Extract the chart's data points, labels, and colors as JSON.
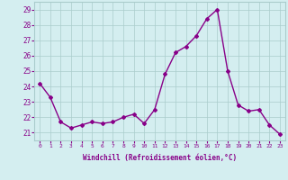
{
  "x": [
    0,
    1,
    2,
    3,
    4,
    5,
    6,
    7,
    8,
    9,
    10,
    11,
    12,
    13,
    14,
    15,
    16,
    17,
    18,
    19,
    20,
    21,
    22,
    23
  ],
  "y": [
    24.2,
    23.3,
    21.7,
    21.3,
    21.5,
    21.7,
    21.6,
    21.7,
    22.0,
    22.2,
    21.6,
    22.5,
    24.8,
    26.2,
    26.6,
    27.3,
    28.4,
    29.0,
    25.0,
    22.8,
    22.4,
    22.5,
    21.5,
    20.9
  ],
  "line_color": "#880088",
  "marker": "D",
  "marker_size": 2,
  "bg_color": "#d4eef0",
  "grid_color": "#aacccc",
  "xlabel": "Windchill (Refroidissement éolien,°C)",
  "xlabel_color": "#880088",
  "ylabel_ticks": [
    21,
    22,
    23,
    24,
    25,
    26,
    27,
    28,
    29
  ],
  "ylim": [
    20.5,
    29.5
  ],
  "xlim": [
    -0.5,
    23.5
  ],
  "xtick_labels": [
    "0",
    "1",
    "2",
    "3",
    "4",
    "5",
    "6",
    "7",
    "8",
    "9",
    "10",
    "11",
    "12",
    "13",
    "14",
    "15",
    "16",
    "17",
    "18",
    "19",
    "20",
    "21",
    "22",
    "23"
  ],
  "tick_color": "#880088",
  "line_width": 1.0
}
